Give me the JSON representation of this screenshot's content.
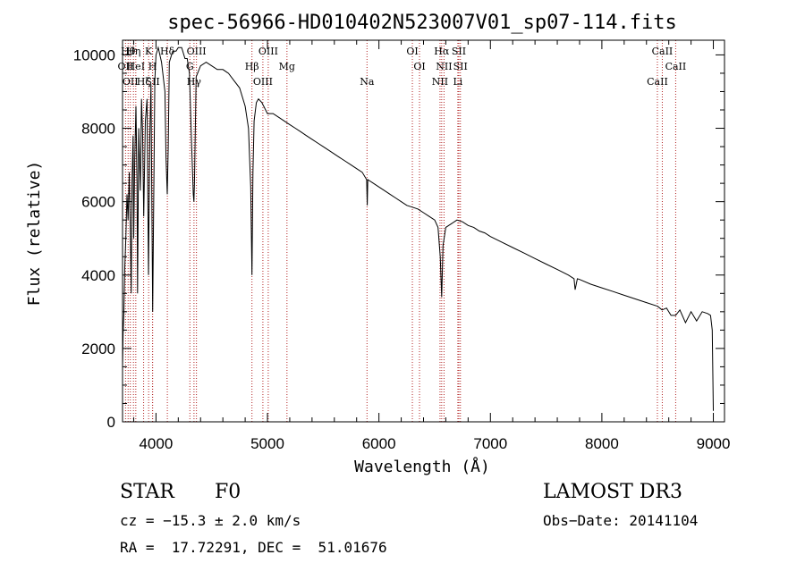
{
  "chart_data": {
    "type": "line",
    "title": "spec-56966-HD010402N523007V01_sp07-114.fits",
    "xlabel": "Wavelength (Å)",
    "ylabel": "Flux (relative)",
    "xlim": [
      3700,
      9100
    ],
    "ylim": [
      0,
      10400
    ],
    "xticks": [
      4000,
      5000,
      6000,
      7000,
      8000,
      9000
    ],
    "yticks": [
      0,
      2000,
      4000,
      6000,
      8000,
      10000
    ],
    "grid": false,
    "series": [
      {
        "name": "spectrum",
        "x": [
          3700,
          3705,
          3712,
          3720,
          3730,
          3740,
          3750,
          3760,
          3770,
          3778,
          3785,
          3795,
          3800,
          3810,
          3820,
          3830,
          3835,
          3845,
          3860,
          3870,
          3880,
          3890,
          3905,
          3920,
          3933,
          3945,
          3955,
          3970,
          3990,
          4000,
          4020,
          4050,
          4080,
          4090,
          4101,
          4110,
          4120,
          4150,
          4180,
          4200,
          4230,
          4260,
          4280,
          4300,
          4320,
          4335,
          4340,
          4345,
          4360,
          4400,
          4450,
          4500,
          4550,
          4600,
          4650,
          4700,
          4750,
          4800,
          4830,
          4850,
          4861,
          4870,
          4880,
          4900,
          4920,
          4950,
          5000,
          5050,
          5100,
          5150,
          5200,
          5250,
          5300,
          5350,
          5400,
          5450,
          5500,
          5550,
          5600,
          5650,
          5700,
          5750,
          5800,
          5850,
          5890,
          5895,
          5900,
          5950,
          6000,
          6050,
          6100,
          6150,
          6200,
          6250,
          6300,
          6350,
          6400,
          6450,
          6500,
          6530,
          6550,
          6563,
          6575,
          6600,
          6650,
          6700,
          6750,
          6800,
          6850,
          6900,
          6950,
          7000,
          7100,
          7200,
          7300,
          7400,
          7500,
          7600,
          7700,
          7750,
          7760,
          7780,
          7800,
          7900,
          8000,
          8100,
          8200,
          8300,
          8400,
          8500,
          8540,
          8580,
          8620,
          8662,
          8700,
          8750,
          8800,
          8850,
          8900,
          8950,
          8975,
          8990,
          9000
        ],
        "y": [
          1500,
          2400,
          3000,
          4200,
          5000,
          6200,
          5500,
          6800,
          5200,
          3500,
          6500,
          7800,
          5000,
          7200,
          8600,
          6500,
          3500,
          8000,
          6300,
          8800,
          7900,
          5600,
          8200,
          8800,
          4000,
          7800,
          9200,
          3000,
          9300,
          10000,
          10200,
          9800,
          9000,
          7200,
          6200,
          7500,
          9800,
          10100,
          10100,
          10200,
          10200,
          9900,
          9900,
          9500,
          7500,
          6200,
          6000,
          6500,
          9400,
          9700,
          9800,
          9700,
          9600,
          9600,
          9500,
          9300,
          9100,
          8600,
          8000,
          6400,
          4000,
          6800,
          8200,
          8700,
          8800,
          8700,
          8400,
          8400,
          8300,
          8200,
          8100,
          8000,
          7900,
          7800,
          7700,
          7600,
          7500,
          7400,
          7300,
          7200,
          7100,
          7000,
          6900,
          6800,
          6600,
          5900,
          6600,
          6500,
          6400,
          6300,
          6200,
          6100,
          6000,
          5900,
          5850,
          5800,
          5700,
          5600,
          5500,
          5300,
          4500,
          3400,
          4800,
          5300,
          5400,
          5500,
          5450,
          5350,
          5300,
          5200,
          5150,
          5050,
          4900,
          4750,
          4600,
          4450,
          4300,
          4150,
          4000,
          3900,
          3600,
          3900,
          3880,
          3750,
          3650,
          3550,
          3450,
          3350,
          3250,
          3150,
          3050,
          3100,
          2900,
          2900,
          3050,
          2700,
          3000,
          2750,
          3000,
          2950,
          2900,
          2500,
          300
        ]
      }
    ],
    "lines": [
      {
        "wl": 3750,
        "labels": [
          "Hθ"
        ]
      },
      {
        "wl": 3727,
        "labels": [
          "OII"
        ]
      },
      {
        "wl": 3770,
        "labels": [
          "OII"
        ]
      },
      {
        "wl": 3798,
        "labels": [
          "Hη"
        ]
      },
      {
        "wl": 3819,
        "labels": [
          "HeI"
        ]
      },
      {
        "wl": 3889,
        "labels": [
          "Hζ"
        ]
      },
      {
        "wl": 3934,
        "labels": [
          "K"
        ]
      },
      {
        "wl": 3969,
        "labels": [
          "H"
        ]
      },
      {
        "wl": 3970,
        "labels": [
          "SII"
        ]
      },
      {
        "wl": 4102,
        "labels": [
          "Hδ"
        ]
      },
      {
        "wl": 4304,
        "labels": [
          "G"
        ]
      },
      {
        "wl": 4341,
        "labels": [
          "Hγ"
        ]
      },
      {
        "wl": 4363,
        "labels": [
          "OIII"
        ]
      },
      {
        "wl": 4861,
        "labels": [
          "Hβ"
        ]
      },
      {
        "wl": 4959,
        "labels": [
          "OIII"
        ]
      },
      {
        "wl": 5007,
        "labels": [
          "OIII"
        ]
      },
      {
        "wl": 5175,
        "labels": [
          "Mg"
        ]
      },
      {
        "wl": 5893,
        "labels": [
          "Na"
        ]
      },
      {
        "wl": 6300,
        "labels": [
          "OI"
        ]
      },
      {
        "wl": 6364,
        "labels": [
          "OI"
        ]
      },
      {
        "wl": 6548,
        "labels": [
          "NII"
        ]
      },
      {
        "wl": 6563,
        "labels": [
          "Hα"
        ]
      },
      {
        "wl": 6584,
        "labels": [
          "NII"
        ]
      },
      {
        "wl": 6708,
        "labels": [
          "Li"
        ]
      },
      {
        "wl": 6717,
        "labels": [
          "SII"
        ]
      },
      {
        "wl": 6731,
        "labels": [
          "SII"
        ]
      },
      {
        "wl": 8498,
        "labels": [
          "CaII"
        ]
      },
      {
        "wl": 8542,
        "labels": [
          "CaII"
        ]
      },
      {
        "wl": 8662,
        "labels": [
          "CaII"
        ]
      }
    ]
  },
  "info": {
    "class": "STAR",
    "subclass": "F0",
    "cz": "cz = −15.3 ± 2.0 km/s",
    "coords": "RA =  17.72291, DEC =  51.01676",
    "survey": "LAMOST DR3",
    "obs_date": "Obs−Date: 20141104"
  },
  "colors": {
    "spectrum": "#000000",
    "line_marker": "#b22222",
    "axes": "#000000"
  }
}
